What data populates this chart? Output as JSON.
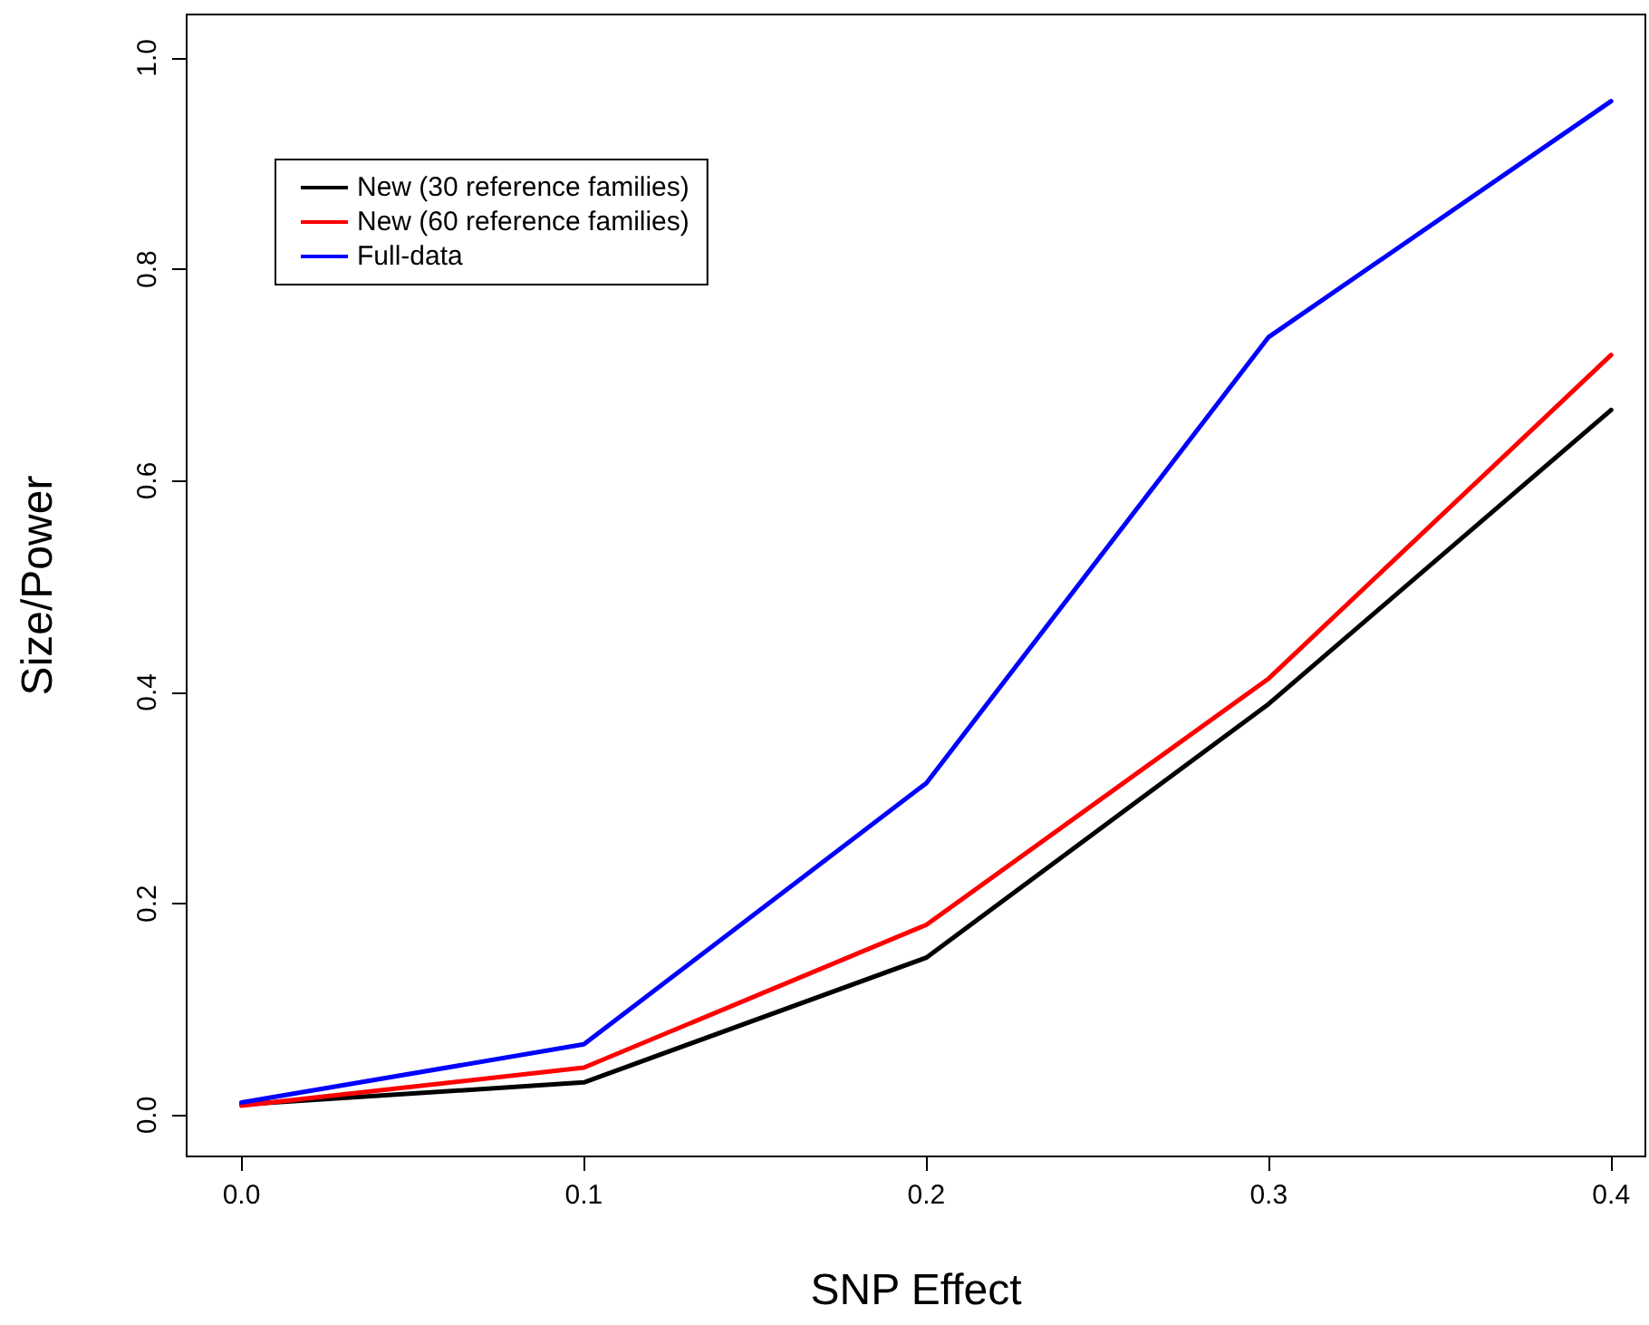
{
  "chart_data": {
    "type": "line",
    "xlabel": "SNP Effect",
    "ylabel": "Size/Power",
    "x": [
      0.0,
      0.1,
      0.2,
      0.3,
      0.4
    ],
    "series": [
      {
        "name": "New (30 reference families)",
        "color": "#000000",
        "values": [
          0.01,
          0.031,
          0.149,
          0.389,
          0.667
        ]
      },
      {
        "name": "New (60 reference families)",
        "color": "#ff0000",
        "values": [
          0.009,
          0.045,
          0.18,
          0.413,
          0.719
        ]
      },
      {
        "name": "Full-data",
        "color": "#0000ff",
        "values": [
          0.012,
          0.067,
          0.314,
          0.736,
          0.959
        ]
      }
    ],
    "xlim": [
      -0.016,
      0.41
    ],
    "xticks": [
      {
        "value": 0,
        "label": "0.0"
      },
      0.1,
      0.2,
      0.3,
      0.4
    ],
    "ylim": [
      -0.039,
      1.041
    ],
    "yticks": [
      {
        "value": 0,
        "label": "0.0"
      },
      0.2,
      0.4,
      0.6,
      0.8,
      {
        "value": 1,
        "label": "1.0"
      }
    ],
    "grid": false,
    "legend": "top left",
    "marker": "none",
    "line_style": "solid"
  }
}
